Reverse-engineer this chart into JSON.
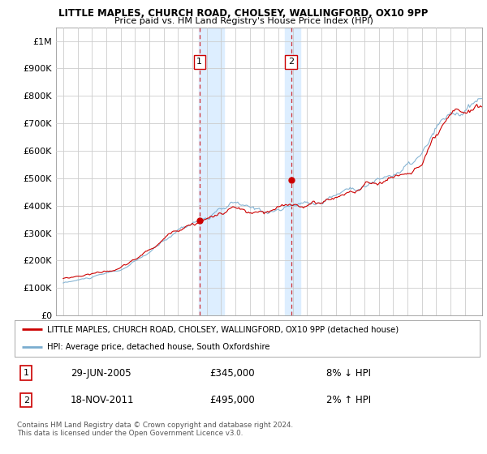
{
  "title_line1": "LITTLE MAPLES, CHURCH ROAD, CHOLSEY, WALLINGFORD, OX10 9PP",
  "title_line2": "Price paid vs. HM Land Registry's House Price Index (HPI)",
  "ylabel_ticks": [
    "£0",
    "£100K",
    "£200K",
    "£300K",
    "£400K",
    "£500K",
    "£600K",
    "£700K",
    "£800K",
    "£900K",
    "£1M"
  ],
  "ytick_values": [
    0,
    100000,
    200000,
    300000,
    400000,
    500000,
    600000,
    700000,
    800000,
    900000,
    1000000
  ],
  "xlim_start": 1995.5,
  "xlim_end": 2025.2,
  "ylim_min": 0,
  "ylim_max": 1050000,
  "sale1_year": 2005.49,
  "sale1_price": 345000,
  "sale2_year": 2011.88,
  "sale2_price": 495000,
  "shade_start1": 2005.45,
  "shade_end1": 2007.2,
  "shade_start2": 2011.45,
  "shade_end2": 2012.5,
  "legend_label_red": "LITTLE MAPLES, CHURCH ROAD, CHOLSEY, WALLINGFORD, OX10 9PP (detached house)",
  "legend_label_blue": "HPI: Average price, detached house, South Oxfordshire",
  "note1_date": "29-JUN-2005",
  "note1_price": "£345,000",
  "note1_hpi": "8% ↓ HPI",
  "note2_date": "18-NOV-2011",
  "note2_price": "£495,000",
  "note2_hpi": "2% ↑ HPI",
  "footer": "Contains HM Land Registry data © Crown copyright and database right 2024.\nThis data is licensed under the Open Government Licence v3.0.",
  "red_color": "#cc0000",
  "blue_color": "#7aadcf",
  "shade_color": "#ddeeff",
  "grid_color": "#cccccc",
  "bg_color": "#ffffff"
}
